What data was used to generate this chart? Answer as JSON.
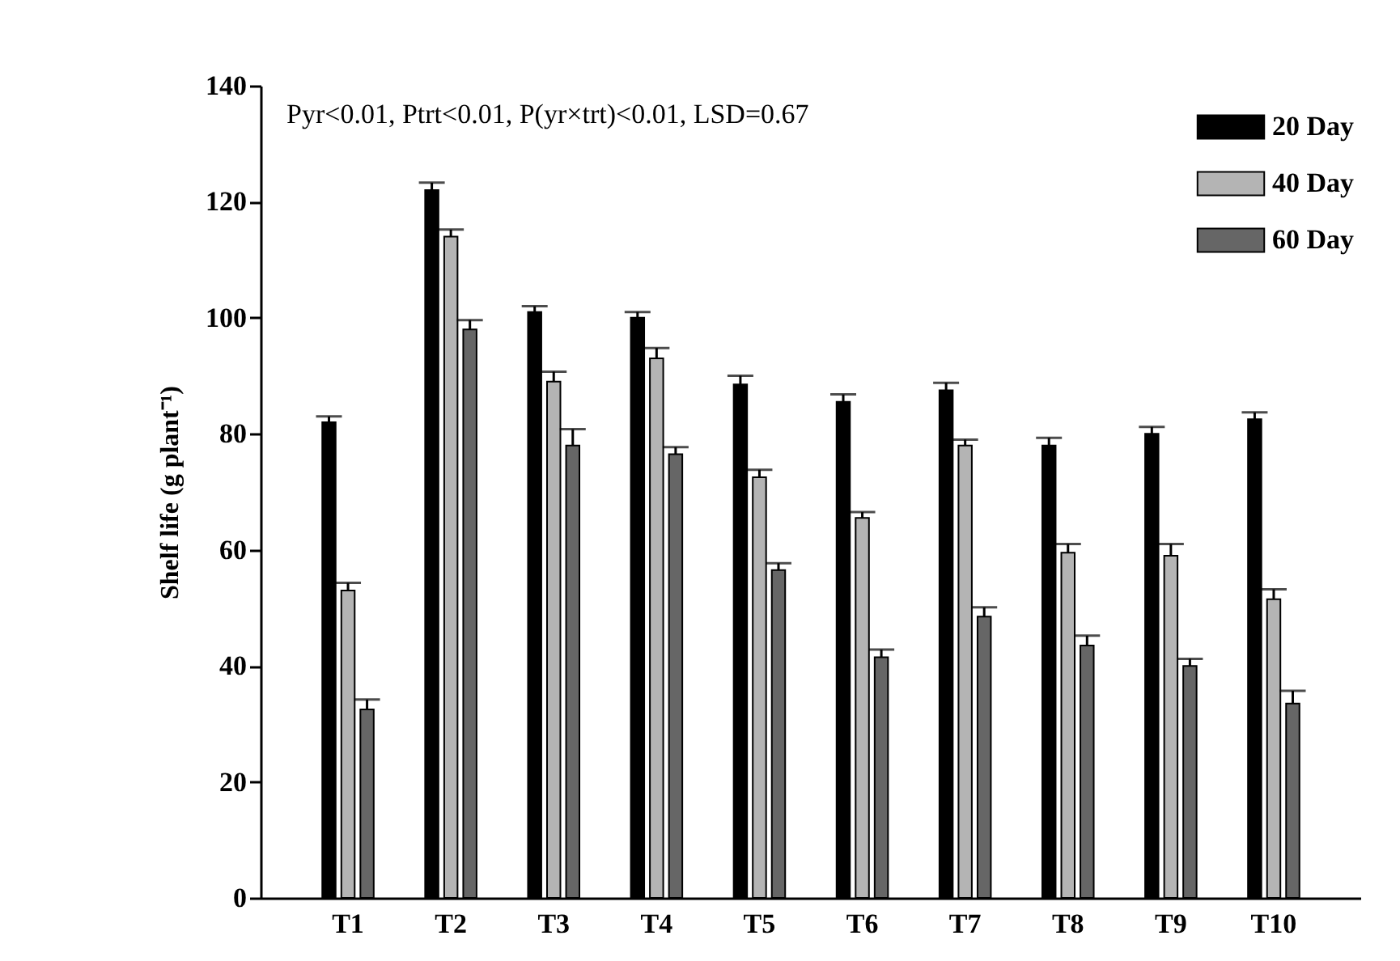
{
  "chart_data": {
    "type": "bar",
    "ylabel": "Shelf life (g plant⁻¹)",
    "annotations": [
      "Pyr<0.01, Ptrt<0.01, P(yr×trt)<0.01, LSD=0.67"
    ],
    "categories": [
      "T1",
      "T2",
      "T3",
      "T4",
      "T5",
      "T6",
      "T7",
      "T8",
      "T9",
      "T10"
    ],
    "series": [
      {
        "name": "20 Day",
        "color": "#000000",
        "values": [
          82,
          122,
          101,
          100,
          88.5,
          85.5,
          87.5,
          78,
          80,
          82.5
        ],
        "errors": [
          [
            82,
            83
          ],
          [
            122,
            123.3
          ],
          [
            101,
            102
          ],
          [
            100,
            101
          ],
          [
            88.5,
            90
          ],
          [
            85.5,
            86.8
          ],
          [
            87.5,
            88.8
          ],
          [
            78,
            79.3
          ],
          [
            80,
            81.2
          ],
          [
            82.5,
            83.7
          ]
        ]
      },
      {
        "name": "40 Day",
        "color": "#b4b4b4",
        "values": [
          53,
          114,
          89,
          93,
          72.5,
          65.5,
          78,
          59.5,
          59,
          51.5
        ],
        "errors": [
          [
            53,
            54.3
          ],
          [
            114,
            115.2
          ],
          [
            89,
            90.7
          ],
          [
            93,
            94.8
          ],
          [
            72.5,
            73.8
          ],
          [
            65.5,
            66.5
          ],
          [
            78,
            79
          ],
          [
            59.5,
            61
          ],
          [
            59,
            61
          ],
          [
            51.5,
            53.2
          ]
        ]
      },
      {
        "name": "60 Day",
        "color": "#666666",
        "values": [
          32.5,
          98,
          78,
          76.5,
          56.5,
          41.5,
          48.5,
          43.5,
          40,
          33.5
        ],
        "errors": [
          [
            32.5,
            34.2
          ],
          [
            98,
            99.6
          ],
          [
            78,
            80.8
          ],
          [
            76.5,
            77.7
          ],
          [
            56.5,
            57.7
          ],
          [
            41.5,
            42.8
          ],
          [
            48.5,
            50.1
          ],
          [
            43.5,
            45.2
          ],
          [
            40,
            41.2
          ],
          [
            33.5,
            35.7
          ]
        ]
      }
    ],
    "ylim": [
      0,
      140
    ],
    "yticks": [
      0,
      20,
      40,
      60,
      80,
      100,
      120,
      140
    ],
    "legend": "top right",
    "grid": false
  }
}
